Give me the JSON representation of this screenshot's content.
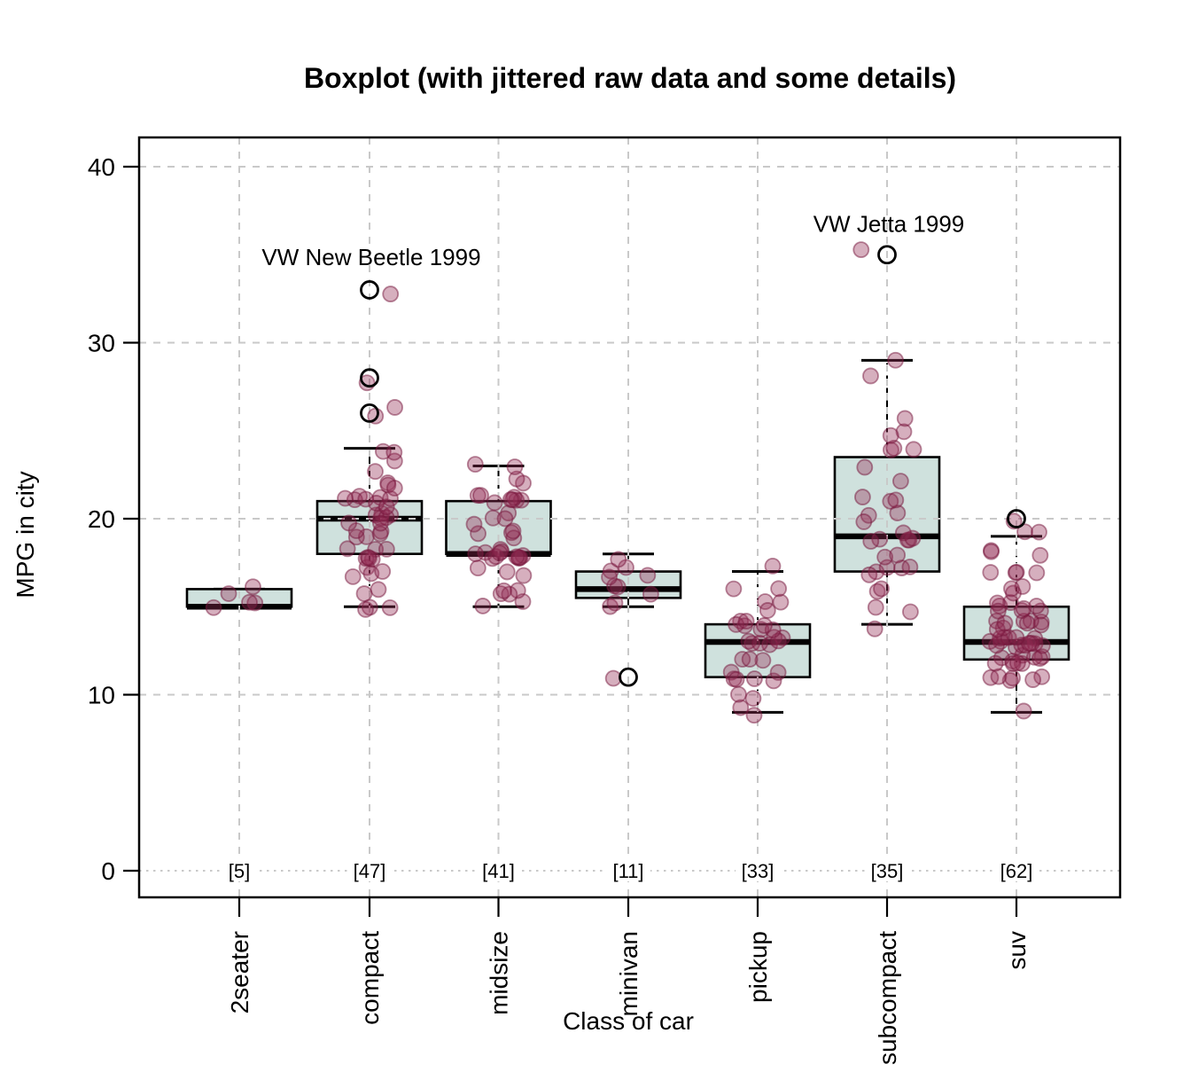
{
  "figure": {
    "title": "Boxplot (with jittered raw data and some details)",
    "x_axis_title": "Class of car",
    "y_axis_title": "MPG in city"
  },
  "chart_data": {
    "type": "boxplot",
    "subtype": "boxplot with jittered raw data points and labeled outliers",
    "title": "Boxplot (with jittered raw data and some details)",
    "xlabel": "Class of car",
    "ylabel": "MPG in city",
    "ylim": [
      0,
      41.5
    ],
    "yticks": [
      0,
      10,
      20,
      30,
      40
    ],
    "grid": "dashed light-gray horizontal lines at y ticks and vertical lines at each category; zero line dotted",
    "legend": "none",
    "categories": [
      "2seater",
      "compact",
      "midsize",
      "minivan",
      "pickup",
      "subcompact",
      "suv"
    ],
    "counts": [
      5,
      47,
      41,
      11,
      33,
      35,
      62
    ],
    "count_labels": [
      "[5]",
      "[47]",
      "[41]",
      "[11]",
      "[33]",
      "[35]",
      "[62]"
    ],
    "colors": {
      "box_fill": "#cfe1dd",
      "box_stroke": "#000000",
      "median": "#000000",
      "gridline": "#c9c9c9",
      "point_fill": "rgba(148,44,84,0.38)",
      "point_stroke": "rgba(118,22,60,0.5)",
      "outlier_stroke": "#000000",
      "annotation_text": "#7b1f3f"
    },
    "series": [
      {
        "class": "2seater",
        "n": 5,
        "whisker_low": 15,
        "q1": 15,
        "median": 15,
        "q3": 16,
        "whisker_high": 16,
        "outliers": [],
        "values": [
          15,
          15,
          15,
          16,
          16
        ]
      },
      {
        "class": "compact",
        "n": 47,
        "whisker_low": 15,
        "q1": 18,
        "median": 20,
        "q3": 21,
        "whisker_high": 24,
        "outliers": [
          26,
          28,
          33
        ],
        "values": [
          15,
          15,
          15,
          16,
          16,
          17,
          17,
          17,
          17,
          18,
          18,
          18,
          18,
          18,
          18,
          18,
          19,
          19,
          19,
          19,
          19,
          20,
          20,
          20,
          20,
          20,
          20,
          20,
          21,
          21,
          21,
          21,
          21,
          21,
          21,
          21,
          22,
          22,
          22,
          23,
          23,
          24,
          24,
          26,
          26,
          28,
          33
        ]
      },
      {
        "class": "midsize",
        "n": 41,
        "whisker_low": 15,
        "q1": 18,
        "median": 18,
        "q3": 21,
        "whisker_high": 23,
        "outliers": [],
        "values": [
          15,
          15,
          16,
          16,
          16,
          16,
          17,
          17,
          17,
          18,
          18,
          18,
          18,
          18,
          18,
          18,
          18,
          18,
          18,
          18,
          18,
          19,
          19,
          19,
          19,
          20,
          20,
          20,
          20,
          21,
          21,
          21,
          21,
          21,
          21,
          21,
          21,
          22,
          22,
          23,
          23
        ]
      },
      {
        "class": "minivan",
        "n": 11,
        "whisker_low": 15,
        "q1": 15.5,
        "median": 16,
        "q3": 17,
        "whisker_high": 18,
        "outliers": [
          11
        ],
        "values": [
          11,
          15,
          15,
          16,
          16,
          16,
          17,
          17,
          17,
          17,
          18
        ]
      },
      {
        "class": "pickup",
        "n": 33,
        "whisker_low": 9,
        "q1": 11,
        "median": 13,
        "q3": 14,
        "whisker_high": 17,
        "outliers": [],
        "values": [
          9,
          9,
          10,
          10,
          11,
          11,
          11,
          11,
          11,
          11,
          12,
          12,
          12,
          13,
          13,
          13,
          13,
          13,
          13,
          13,
          14,
          14,
          14,
          14,
          14,
          14,
          14,
          15,
          15,
          15,
          16,
          16,
          17
        ]
      },
      {
        "class": "subcompact",
        "n": 35,
        "whisker_low": 14,
        "q1": 17,
        "median": 19,
        "q3": 23.5,
        "whisker_high": 29,
        "outliers": [
          35
        ],
        "values": [
          14,
          15,
          15,
          16,
          16,
          17,
          17,
          17,
          17,
          17,
          18,
          18,
          19,
          19,
          19,
          19,
          19,
          19,
          20,
          20,
          20,
          21,
          21,
          21,
          22,
          23,
          24,
          24,
          24,
          25,
          25,
          26,
          28,
          29,
          35
        ]
      },
      {
        "class": "suv",
        "n": 62,
        "whisker_low": 9,
        "q1": 12,
        "median": 13,
        "q3": 15,
        "whisker_high": 19,
        "outliers": [
          20
        ],
        "values": [
          9,
          11,
          11,
          11,
          11,
          11,
          11,
          12,
          12,
          12,
          12,
          12,
          12,
          12,
          12,
          12,
          12,
          13,
          13,
          13,
          13,
          13,
          13,
          13,
          13,
          13,
          13,
          13,
          13,
          13,
          13,
          13,
          14,
          14,
          14,
          14,
          14,
          14,
          14,
          14,
          14,
          15,
          15,
          15,
          15,
          15,
          15,
          15,
          15,
          16,
          16,
          16,
          17,
          17,
          17,
          17,
          18,
          18,
          18,
          19,
          19,
          20
        ]
      }
    ],
    "annotations": [
      {
        "text": "VW New Beetle 1999",
        "category": "compact",
        "at_mpg": 34.4,
        "points_to_outlier": 33
      },
      {
        "text": "VW Jetta 1999",
        "category": "subcompact",
        "at_mpg": 36.3,
        "points_to_outlier": 35
      }
    ]
  }
}
